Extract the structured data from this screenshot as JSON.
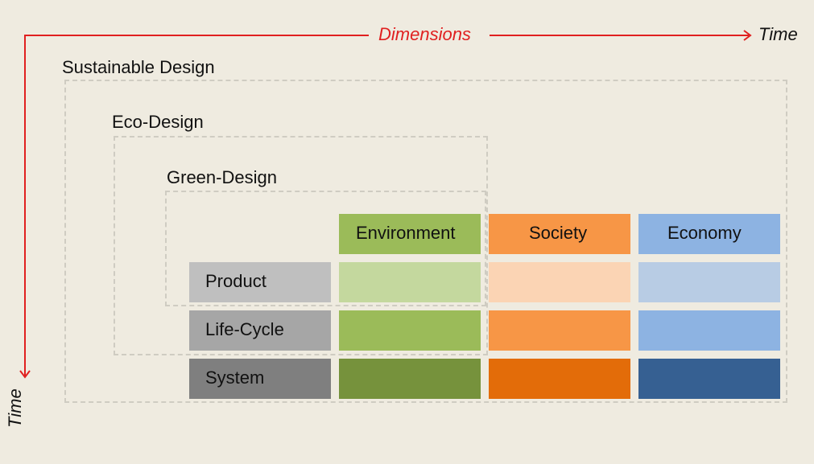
{
  "axes": {
    "horizontal_label": "Dimensions",
    "horizontal_end_label": "Time",
    "vertical_label": "Time"
  },
  "scopes": {
    "sustainable": "Sustainable Design",
    "eco": "Eco-Design",
    "green": "Green-Design"
  },
  "dimensions": [
    "Environment",
    "Society",
    "Economy"
  ],
  "levels": [
    "Product",
    "Life-Cycle",
    "System"
  ],
  "colors": {
    "background": "#efebe0",
    "axis": "#e02020",
    "environment": [
      "#9bbb59",
      "#c4d89e",
      "#9bbb59",
      "#76923c"
    ],
    "society": [
      "#f79646",
      "#fbd4b4",
      "#f79646",
      "#e36c09"
    ],
    "economy": [
      "#8db3e2",
      "#b8cce4",
      "#8db3e2",
      "#366092"
    ],
    "levels": [
      "#bfbfbf",
      "#a6a6a6",
      "#7f7f7f"
    ]
  }
}
